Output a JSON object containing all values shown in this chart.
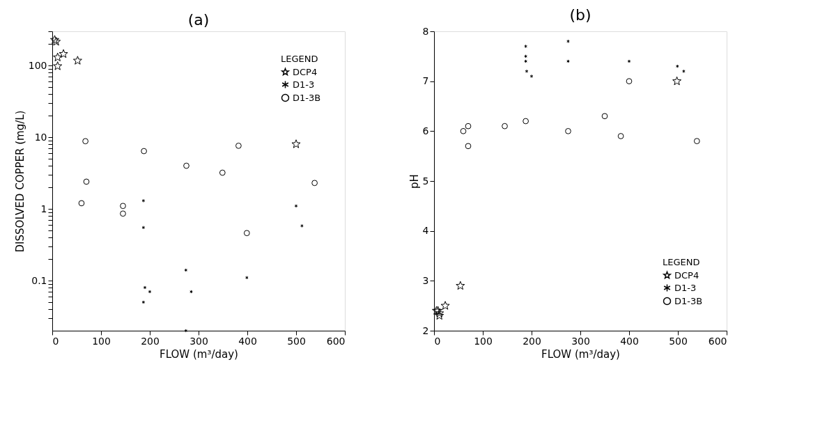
{
  "chart_data": [
    {
      "type": "scatter",
      "title": "(a)",
      "xlabel": "FLOW (m³/day)",
      "ylabel": "DISSOLVED COPPER (mg/L)",
      "legend_title": "LEGEND",
      "legend": "top right",
      "grid": false,
      "log": "y",
      "xlim": [
        0,
        600
      ],
      "xticks": [
        0,
        100,
        200,
        300,
        400,
        500,
        600
      ],
      "ylim": [
        0.02,
        300
      ],
      "yticks": [
        {
          "value": 0.03,
          "label": null
        },
        {
          "value": 0.04,
          "label": null
        },
        {
          "value": 0.05,
          "label": null
        },
        {
          "value": 0.06,
          "label": null
        },
        {
          "value": 0.07,
          "label": null
        },
        {
          "value": 0.08,
          "label": null
        },
        {
          "value": 0.09,
          "label": null
        },
        0.1,
        {
          "value": 0.2,
          "label": null
        },
        {
          "value": 0.3,
          "label": null
        },
        {
          "value": 0.4,
          "label": null
        },
        {
          "value": 0.5,
          "label": null
        },
        {
          "value": 0.6,
          "label": null
        },
        {
          "value": 0.7,
          "label": null
        },
        {
          "value": 0.8,
          "label": null
        },
        {
          "value": 0.9,
          "label": null
        },
        1,
        {
          "value": 2,
          "label": null
        },
        {
          "value": 3,
          "label": null
        },
        {
          "value": 4,
          "label": null
        },
        {
          "value": 5,
          "label": null
        },
        {
          "value": 6,
          "label": null
        },
        {
          "value": 7,
          "label": null
        },
        {
          "value": 8,
          "label": null
        },
        {
          "value": 9,
          "label": null
        },
        10,
        {
          "value": 20,
          "label": null
        },
        {
          "value": 30,
          "label": null
        },
        {
          "value": 40,
          "label": null
        },
        {
          "value": 50,
          "label": null
        },
        {
          "value": 60,
          "label": null
        },
        {
          "value": 70,
          "label": null
        },
        {
          "value": 80,
          "label": null
        },
        {
          "value": 90,
          "label": null
        },
        100,
        {
          "value": 200,
          "label": null
        },
        {
          "value": 300,
          "label": null
        }
      ],
      "series": [
        {
          "name": "DCP4",
          "color": "#000000",
          "marker": "star",
          "x": [
            5,
            8,
            11,
            23,
            11,
            52,
            500
          ],
          "values": [
            228,
            215,
            130,
            145,
            98,
            117,
            8
          ]
        },
        {
          "name": "D1-3",
          "color": "#000000",
          "marker": "cross",
          "x": [
            187,
            187,
            190,
            200,
            187,
            274,
            285,
            274,
            399,
            500,
            512
          ],
          "values": [
            1.3,
            0.55,
            0.08,
            0.07,
            0.05,
            0.14,
            0.07,
            0.02,
            0.11,
            1.1,
            0.58
          ]
        },
        {
          "name": "D1-3B",
          "color": "#000000",
          "marker": "circle",
          "x": [
            68,
            188,
            382,
            275,
            349,
            70,
            60,
            145,
            145,
            399,
            538
          ],
          "values": [
            8.8,
            6.4,
            7.6,
            4.0,
            3.2,
            2.4,
            1.2,
            1.1,
            0.86,
            0.46,
            2.3
          ]
        }
      ]
    },
    {
      "type": "scatter",
      "title": "(b)",
      "xlabel": "FLOW (m³/day)",
      "ylabel": "pH",
      "legend_title": "LEGEND",
      "legend": "bottom right",
      "grid": false,
      "xlim": [
        0,
        600
      ],
      "xticks": [
        0,
        100,
        200,
        300,
        400,
        500,
        600
      ],
      "ylim": [
        2,
        8
      ],
      "yticks": [
        2,
        3,
        4,
        5,
        6,
        7,
        8
      ],
      "series": [
        {
          "name": "DCP4",
          "color": "#000000",
          "marker": "star",
          "x": [
            5,
            8,
            11,
            23,
            11,
            54,
            498
          ],
          "values": [
            2.4,
            2.4,
            2.3,
            2.5,
            2.35,
            2.9,
            7.0
          ]
        },
        {
          "name": "D1-3",
          "color": "#000000",
          "marker": "cross",
          "x": [
            188,
            188,
            188,
            190,
            200,
            275,
            275,
            400,
            499,
            512
          ],
          "values": [
            7.7,
            7.5,
            7.4,
            7.2,
            7.1,
            7.8,
            7.4,
            7.4,
            7.3,
            7.2
          ]
        },
        {
          "name": "D1-3B",
          "color": "#000000",
          "marker": "circle",
          "x": [
            60,
            70,
            70,
            145,
            188,
            275,
            350,
            383,
            400,
            539
          ],
          "values": [
            6.0,
            6.1,
            5.7,
            6.1,
            6.2,
            6.0,
            6.3,
            5.9,
            7.0,
            5.8
          ]
        }
      ]
    }
  ]
}
